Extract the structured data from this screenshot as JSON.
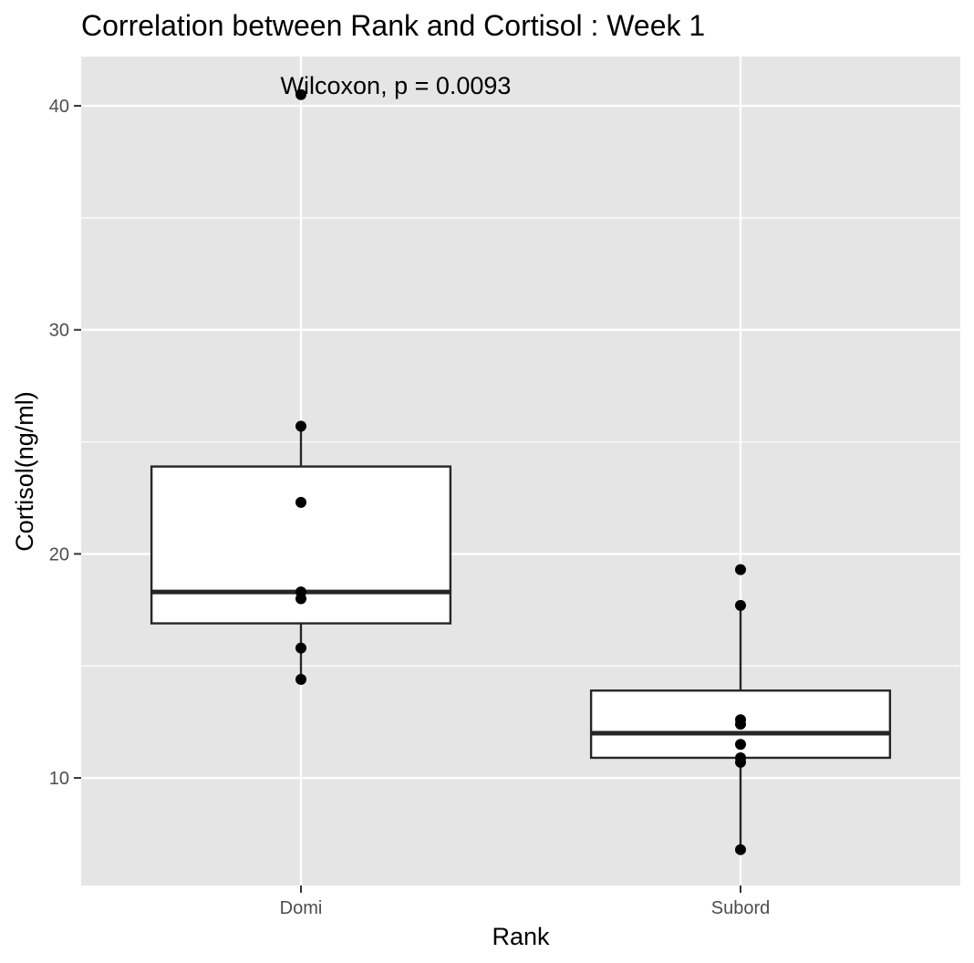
{
  "chart_data": {
    "type": "box",
    "title": "Correlation between Rank and Cortisol : Week 1",
    "xlabel": "Rank",
    "ylabel": "Cortisol(ng/ml)",
    "categories": [
      "Domi",
      "Subord"
    ],
    "ylim": [
      5.2,
      42.2
    ],
    "yticks": [
      10,
      20,
      30,
      40
    ],
    "grid": true,
    "annotation": "Wilcoxon, p = 0.0093",
    "boxes": [
      {
        "category": "Domi",
        "whisker_low": 14.4,
        "q1": 16.9,
        "median": 18.3,
        "q3": 23.9,
        "whisker_high": 25.7
      },
      {
        "category": "Subord",
        "whisker_low": 6.8,
        "q1": 10.9,
        "median": 12.0,
        "q3": 13.9,
        "whisker_high": 17.7
      }
    ],
    "points": [
      {
        "category": "Domi",
        "values": [
          40.5,
          25.7,
          22.3,
          18.3,
          18.0,
          15.8,
          14.4
        ]
      },
      {
        "category": "Subord",
        "values": [
          19.3,
          17.7,
          12.6,
          12.4,
          11.5,
          10.9,
          10.7,
          6.8
        ]
      }
    ],
    "colors": {
      "panel": "#e5e5e5",
      "grid": "#ffffff",
      "box_fill": "#ffffff",
      "box_line": "#262626",
      "point": "#000000",
      "tick_text": "#4d4d4d"
    }
  }
}
